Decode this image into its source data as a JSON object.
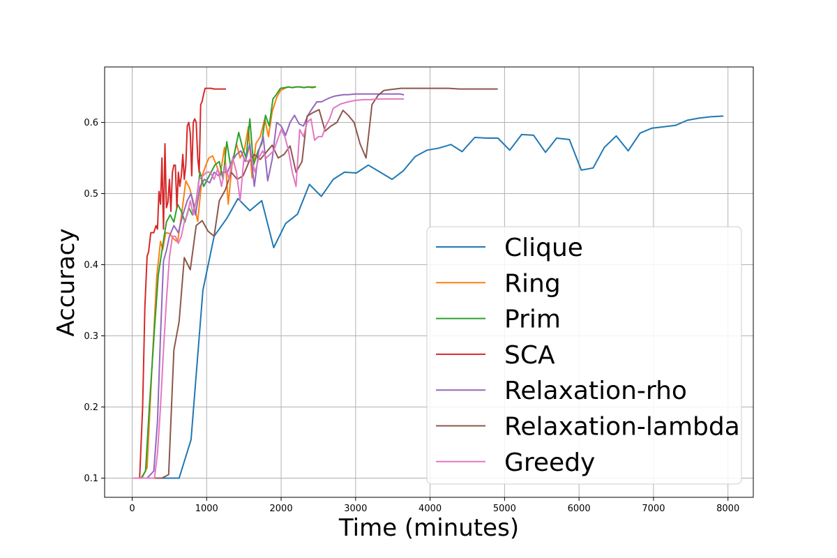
{
  "chart_data": {
    "type": "line",
    "title": "",
    "xlabel": "Time (minutes)",
    "ylabel": "Accuracy",
    "xlim": [
      -370,
      8340
    ],
    "ylim": [
      0.073,
      0.678
    ],
    "xticks": [
      0,
      1000,
      2000,
      3000,
      4000,
      5000,
      6000,
      7000,
      8000
    ],
    "yticks": [
      0.1,
      0.2,
      0.3,
      0.4,
      0.5,
      0.6
    ],
    "grid": true,
    "legend_position": "lower-right",
    "colors": [
      "#1f77b4",
      "#ff7f0e",
      "#2ca02c",
      "#d62728",
      "#9467bd",
      "#8c564b",
      "#e377c2"
    ],
    "series": [
      {
        "name": "Clique",
        "x": [
          20,
          630,
          790,
          950,
          1100,
          1270,
          1420,
          1580,
          1740,
          1900,
          2060,
          2220,
          2380,
          2540,
          2700,
          2850,
          3010,
          3170,
          3330,
          3490,
          3640,
          3800,
          3960,
          4120,
          4280,
          4430,
          4600,
          4760,
          4910,
          5070,
          5230,
          5390,
          5550,
          5700,
          5870,
          6030,
          6190,
          6340,
          6500,
          6660,
          6820,
          6980,
          7140,
          7300,
          7450,
          7610,
          7770,
          7930
        ],
        "y": [
          0.1,
          0.1,
          0.154,
          0.364,
          0.44,
          0.465,
          0.493,
          0.476,
          0.49,
          0.424,
          0.458,
          0.471,
          0.513,
          0.496,
          0.52,
          0.53,
          0.529,
          0.54,
          0.53,
          0.52,
          0.532,
          0.552,
          0.561,
          0.564,
          0.569,
          0.559,
          0.579,
          0.578,
          0.578,
          0.561,
          0.583,
          0.582,
          0.558,
          0.578,
          0.576,
          0.533,
          0.536,
          0.565,
          0.581,
          0.56,
          0.585,
          0.592,
          0.594,
          0.596,
          0.603,
          0.606,
          0.608,
          0.609
        ]
      },
      {
        "name": "Ring",
        "x": [
          20,
          130,
          200,
          260,
          330,
          380,
          410,
          450,
          500,
          560,
          610,
          660,
          720,
          770,
          820,
          880,
          940,
          990,
          1030,
          1080,
          1130,
          1180,
          1240,
          1290,
          1340,
          1400,
          1450,
          1510,
          1560,
          1610,
          1660,
          1720,
          1780,
          1830,
          1880,
          1940,
          1990,
          2050,
          2100,
          2150,
          2200,
          2250,
          2300,
          2350,
          2400,
          2450
        ],
        "y": [
          0.1,
          0.1,
          0.115,
          0.245,
          0.383,
          0.433,
          0.421,
          0.445,
          0.444,
          0.436,
          0.432,
          0.468,
          0.518,
          0.508,
          0.488,
          0.461,
          0.525,
          0.54,
          0.55,
          0.553,
          0.54,
          0.525,
          0.565,
          0.485,
          0.54,
          0.57,
          0.55,
          0.563,
          0.594,
          0.522,
          0.57,
          0.58,
          0.605,
          0.58,
          0.615,
          0.635,
          0.645,
          0.648,
          0.65,
          0.649,
          0.65,
          0.65,
          0.649,
          0.65,
          0.65,
          0.65
        ]
      },
      {
        "name": "Prim",
        "x": [
          20,
          120,
          180,
          230,
          300,
          350,
          400,
          460,
          510,
          560,
          610,
          660,
          710,
          760,
          810,
          860,
          910,
          960,
          1010,
          1060,
          1110,
          1170,
          1220,
          1270,
          1320,
          1370,
          1430,
          1480,
          1530,
          1580,
          1630,
          1690,
          1740,
          1790,
          1840,
          1890,
          1940,
          1990,
          2050,
          2100,
          2150,
          2200,
          2260,
          2310,
          2360,
          2420,
          2460
        ],
        "y": [
          0.1,
          0.1,
          0.11,
          0.2,
          0.31,
          0.385,
          0.42,
          0.46,
          0.47,
          0.46,
          0.485,
          0.475,
          0.46,
          0.48,
          0.47,
          0.49,
          0.53,
          0.51,
          0.52,
          0.53,
          0.54,
          0.545,
          0.52,
          0.573,
          0.54,
          0.555,
          0.586,
          0.565,
          0.55,
          0.605,
          0.54,
          0.56,
          0.57,
          0.61,
          0.595,
          0.633,
          0.64,
          0.648,
          0.649,
          0.65,
          0.649,
          0.65,
          0.65,
          0.649,
          0.65,
          0.649,
          0.65
        ]
      },
      {
        "name": "SCA",
        "x": [
          20,
          100,
          140,
          170,
          200,
          220,
          250,
          270,
          290,
          320,
          340,
          360,
          380,
          400,
          420,
          440,
          460,
          480,
          500,
          520,
          540,
          560,
          580,
          600,
          620,
          640,
          660,
          680,
          700,
          720,
          740,
          760,
          780,
          800,
          820,
          840,
          860,
          880,
          900,
          920,
          940,
          960,
          980,
          1000,
          1020,
          1060,
          1100,
          1150,
          1200,
          1250
        ],
        "y": [
          0.1,
          0.1,
          0.2,
          0.34,
          0.412,
          0.418,
          0.445,
          0.445,
          0.445,
          0.455,
          0.45,
          0.503,
          0.485,
          0.55,
          0.45,
          0.57,
          0.48,
          0.488,
          0.52,
          0.475,
          0.53,
          0.54,
          0.54,
          0.48,
          0.53,
          0.51,
          0.525,
          0.555,
          0.52,
          0.54,
          0.595,
          0.6,
          0.585,
          0.525,
          0.6,
          0.605,
          0.6,
          0.55,
          0.53,
          0.625,
          0.63,
          0.64,
          0.648,
          0.648,
          0.648,
          0.648,
          0.647,
          0.647,
          0.647,
          0.647
        ]
      },
      {
        "name": "Relaxation-rho",
        "x": [
          20,
          200,
          290,
          340,
          380,
          420,
          460,
          500,
          560,
          620,
          680,
          740,
          790,
          850,
          910,
          970,
          1040,
          1100,
          1160,
          1220,
          1280,
          1340,
          1400,
          1460,
          1520,
          1580,
          1640,
          1700,
          1760,
          1820,
          1880,
          1940,
          2000,
          2060,
          2120,
          2180,
          2240,
          2300,
          2360,
          2420,
          2480,
          2540,
          2600,
          2660,
          2720,
          2780,
          2840,
          2900,
          3000,
          3100,
          3200,
          3300,
          3400,
          3500,
          3600,
          3640
        ],
        "y": [
          0.1,
          0.1,
          0.11,
          0.18,
          0.3,
          0.405,
          0.42,
          0.44,
          0.455,
          0.445,
          0.47,
          0.49,
          0.5,
          0.47,
          0.51,
          0.52,
          0.515,
          0.53,
          0.525,
          0.53,
          0.53,
          0.545,
          0.555,
          0.56,
          0.545,
          0.57,
          0.51,
          0.56,
          0.58,
          0.518,
          0.548,
          0.6,
          0.595,
          0.582,
          0.6,
          0.61,
          0.598,
          0.595,
          0.61,
          0.62,
          0.629,
          0.629,
          0.632,
          0.635,
          0.637,
          0.638,
          0.639,
          0.639,
          0.64,
          0.64,
          0.64,
          0.64,
          0.64,
          0.64,
          0.64,
          0.639
        ]
      },
      {
        "name": "Relaxation-lambda",
        "x": [
          20,
          400,
          490,
          560,
          630,
          700,
          780,
          860,
          940,
          1020,
          1100,
          1170,
          1250,
          1330,
          1410,
          1490,
          1570,
          1640,
          1720,
          1800,
          1880,
          1960,
          2040,
          2120,
          2200,
          2280,
          2350,
          2430,
          2510,
          2590,
          2670,
          2750,
          2830,
          2900,
          2980,
          3060,
          3140,
          3220,
          3300,
          3380,
          3450,
          3530,
          3610,
          3690,
          3770,
          3850,
          3930,
          4010,
          4090,
          4170,
          4250,
          4400,
          4600,
          4800,
          4900
        ],
        "y": [
          0.1,
          0.1,
          0.105,
          0.28,
          0.32,
          0.41,
          0.393,
          0.455,
          0.462,
          0.447,
          0.44,
          0.49,
          0.505,
          0.53,
          0.52,
          0.525,
          0.545,
          0.555,
          0.548,
          0.558,
          0.568,
          0.55,
          0.555,
          0.567,
          0.53,
          0.545,
          0.609,
          0.614,
          0.618,
          0.588,
          0.595,
          0.6,
          0.617,
          0.61,
          0.6,
          0.57,
          0.55,
          0.625,
          0.638,
          0.645,
          0.646,
          0.647,
          0.648,
          0.648,
          0.648,
          0.648,
          0.648,
          0.648,
          0.648,
          0.648,
          0.648,
          0.647,
          0.647,
          0.647,
          0.647
        ]
      },
      {
        "name": "Greedy",
        "x": [
          20,
          300,
          340,
          380,
          420,
          460,
          500,
          540,
          580,
          620,
          660,
          700,
          740,
          780,
          820,
          860,
          900,
          950,
          1000,
          1050,
          1100,
          1150,
          1200,
          1250,
          1300,
          1350,
          1400,
          1450,
          1500,
          1550,
          1600,
          1650,
          1700,
          1750,
          1800,
          1850,
          1900,
          1950,
          2000,
          2050,
          2100,
          2150,
          2200,
          2250,
          2300,
          2350,
          2400,
          2450,
          2500,
          2550,
          2600,
          2650,
          2700,
          2800,
          2900,
          3000,
          3100,
          3200,
          3300,
          3400,
          3500,
          3640
        ],
        "y": [
          0.1,
          0.1,
          0.135,
          0.2,
          0.28,
          0.35,
          0.41,
          0.44,
          0.44,
          0.43,
          0.44,
          0.46,
          0.47,
          0.49,
          0.47,
          0.49,
          0.52,
          0.525,
          0.53,
          0.53,
          0.52,
          0.535,
          0.51,
          0.54,
          0.52,
          0.55,
          0.53,
          0.49,
          0.55,
          0.545,
          0.55,
          0.53,
          0.55,
          0.56,
          0.55,
          0.555,
          0.56,
          0.575,
          0.59,
          0.58,
          0.56,
          0.53,
          0.51,
          0.59,
          0.58,
          0.6,
          0.605,
          0.575,
          0.58,
          0.58,
          0.595,
          0.605,
          0.62,
          0.626,
          0.629,
          0.631,
          0.632,
          0.632,
          0.633,
          0.633,
          0.633,
          0.633
        ]
      }
    ]
  }
}
